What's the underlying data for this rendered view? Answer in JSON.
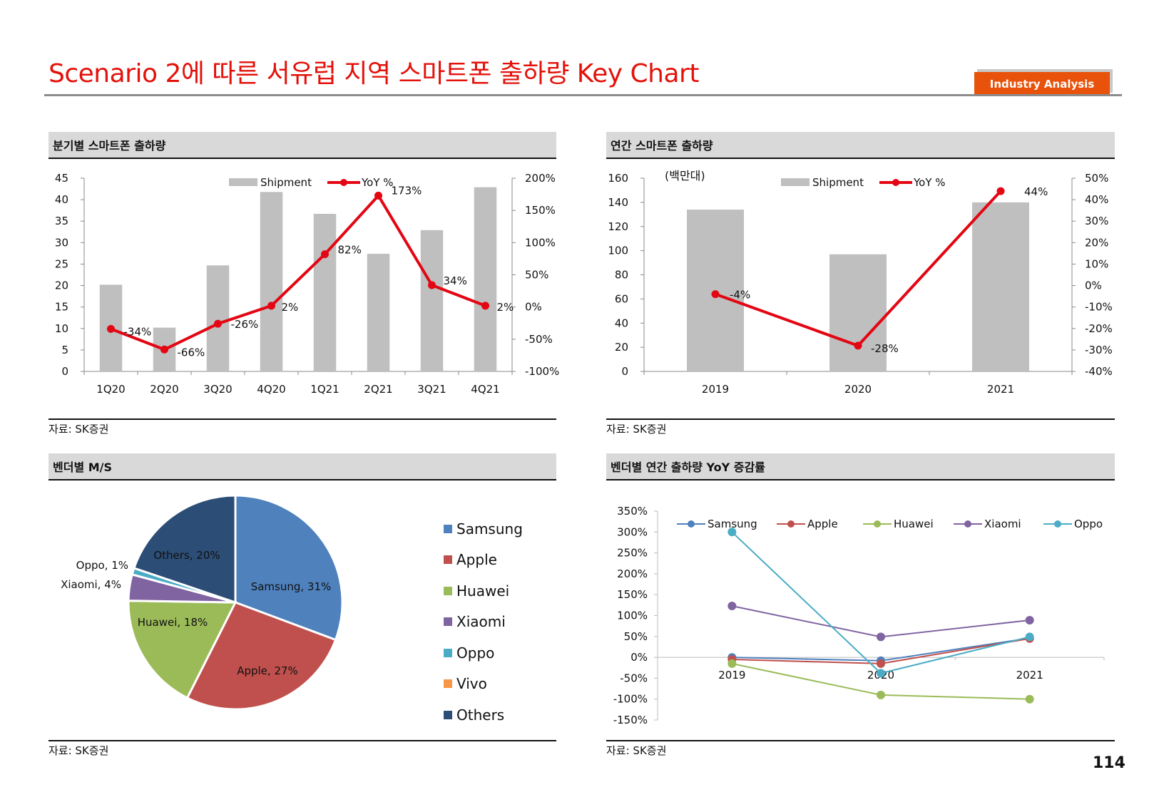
{
  "header": {
    "title": "Scenario 2에 따른 서유럽 지역 스마트폰 출하량 Key Chart",
    "badge": "Industry Analysis",
    "page_number": "114"
  },
  "colors": {
    "title": "#e3120b",
    "badge": "#e8520b",
    "bar": "#bfbfbf",
    "yoy_line": "#e30613"
  },
  "panels": {
    "quarterly": {
      "title": "분기별 스마트폰 출하량",
      "source": "자료: SK증권"
    },
    "annual": {
      "title": "연간 스마트폰 출하량",
      "source": "자료: SK증권"
    },
    "vendor_share": {
      "title": "벤더별 M/S",
      "source": "자료: SK증권"
    },
    "vendor_yoy": {
      "title": "벤더별 연간 출하량 YoY 증감률",
      "source": "자료: SK증권"
    }
  },
  "chart_data": [
    {
      "id": "quarterly",
      "type": "bar",
      "categories": [
        "1Q20",
        "2Q20",
        "3Q20",
        "4Q20",
        "1Q21",
        "2Q21",
        "3Q21",
        "4Q21"
      ],
      "series": [
        {
          "name": "Shipment",
          "type": "bar",
          "axis": "left",
          "values": [
            20.2,
            10.2,
            24.7,
            41.8,
            36.7,
            27.4,
            32.9,
            42.9
          ]
        },
        {
          "name": "YoY %",
          "type": "line",
          "axis": "right",
          "values": [
            -34,
            -66,
            -26,
            2,
            82,
            173,
            34,
            2
          ],
          "labels": [
            "-34%",
            "-66%",
            "-26%",
            "2%",
            "82%",
            "173%",
            "34%",
            "2%"
          ]
        }
      ],
      "y_left": {
        "min": 0,
        "max": 45,
        "ticks": [
          "0",
          "5",
          "10",
          "15",
          "20",
          "25",
          "30",
          "35",
          "40",
          "45"
        ]
      },
      "y_right": {
        "min": -100,
        "max": 200,
        "ticks": [
          "-100%",
          "-50%",
          "0%",
          "50%",
          "100%",
          "150%",
          "200%"
        ]
      },
      "legend": [
        "Shipment",
        "YoY %"
      ],
      "legend_position": "top"
    },
    {
      "id": "annual",
      "type": "bar",
      "unit_label": "(백만대)",
      "categories": [
        "2019",
        "2020",
        "2021"
      ],
      "series": [
        {
          "name": "Shipment",
          "type": "bar",
          "axis": "left",
          "values": [
            134,
            97,
            140
          ]
        },
        {
          "name": "YoY %",
          "type": "line",
          "axis": "right",
          "values": [
            -4,
            -28,
            44
          ],
          "labels": [
            "-4%",
            "-28%",
            "44%"
          ]
        }
      ],
      "y_left": {
        "min": 0,
        "max": 160,
        "ticks": [
          "0",
          "20",
          "40",
          "60",
          "80",
          "100",
          "120",
          "140",
          "160"
        ]
      },
      "y_right": {
        "min": -40,
        "max": 50,
        "ticks": [
          "-40%",
          "-30%",
          "-20%",
          "-10%",
          "0%",
          "10%",
          "20%",
          "30%",
          "40%",
          "50%"
        ]
      },
      "legend": [
        "Shipment",
        "YoY %"
      ],
      "legend_position": "top"
    },
    {
      "id": "vendor_share",
      "type": "pie",
      "slices": [
        {
          "name": "Samsung",
          "value": 31,
          "label": "Samsung, 31%",
          "color": "#4f81bd"
        },
        {
          "name": "Apple",
          "value": 27,
          "label": "Apple, 27%",
          "color": "#c0504d"
        },
        {
          "name": "Huawei",
          "value": 18,
          "label": "Huawei, 18%",
          "color": "#9bbb59"
        },
        {
          "name": "Xiaomi",
          "value": 4,
          "label": "Xiaomi, 4%",
          "color": "#8064a2"
        },
        {
          "name": "Oppo",
          "value": 1,
          "label": "Oppo, 1%",
          "color": "#4bacc6"
        },
        {
          "name": "Vivo",
          "value": 0,
          "label": "",
          "color": "#f79646"
        },
        {
          "name": "Others",
          "value": 20,
          "label": "Others, 20%",
          "color": "#2c4d75"
        }
      ],
      "legend": [
        "Samsung",
        "Apple",
        "Huawei",
        "Xiaomi",
        "Oppo",
        "Vivo",
        "Others"
      ],
      "legend_position": "right"
    },
    {
      "id": "vendor_yoy",
      "type": "line",
      "categories": [
        "2019",
        "2020",
        "2021"
      ],
      "series": [
        {
          "name": "Samsung",
          "color": "#4f81bd",
          "values": [
            0,
            -8,
            46
          ]
        },
        {
          "name": "Apple",
          "color": "#c0504d",
          "values": [
            -5,
            -15,
            45
          ]
        },
        {
          "name": "Huawei",
          "color": "#9bbb59",
          "values": [
            -15,
            -90,
            -100
          ]
        },
        {
          "name": "Xiaomi",
          "color": "#8064a2",
          "values": [
            123,
            49,
            89
          ]
        },
        {
          "name": "Oppo",
          "color": "#4bacc6",
          "values": [
            300,
            -38,
            49
          ]
        }
      ],
      "y": {
        "min": -150,
        "max": 350,
        "ticks": [
          "-150%",
          "-100%",
          "-50%",
          "0%",
          "50%",
          "100%",
          "150%",
          "200%",
          "250%",
          "300%",
          "350%"
        ]
      },
      "legend_position": "top"
    }
  ]
}
